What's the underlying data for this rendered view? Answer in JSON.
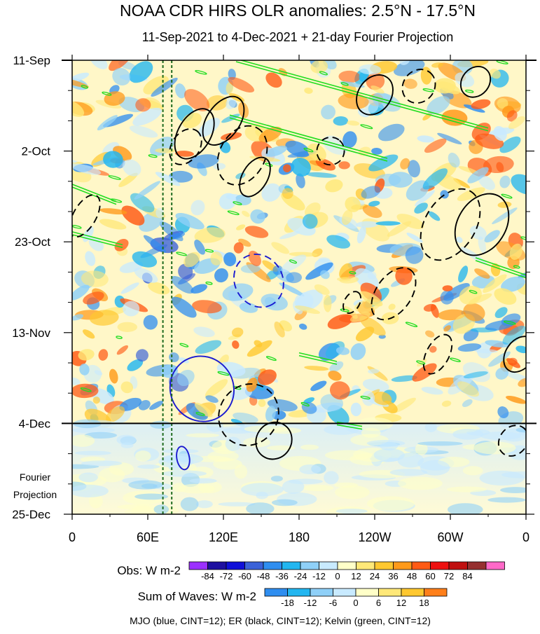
{
  "chart_data": {
    "type": "heatmap",
    "title": "NOAA CDR HIRS OLR anomalies: 2.5°N - 17.5°N",
    "subtitle": "11-Sep-2021 to 4-Dec-2021 + 21-day Fourier Projection",
    "x_ticks": [
      "0",
      "60E",
      "120E",
      "180",
      "120W",
      "60W",
      "0"
    ],
    "x_tick_values": [
      0,
      60,
      120,
      180,
      240,
      300,
      360
    ],
    "y_ticks": [
      "11-Sep",
      "2-Oct",
      "23-Oct",
      "13-Nov",
      "4-Dec",
      "25-Dec"
    ],
    "xlim": [
      0,
      360
    ],
    "ylim": [
      "2021-09-11",
      "2021-12-25"
    ],
    "observation_end": "2021-12-04",
    "projection_label": [
      "Fourier",
      "Projection"
    ],
    "reference_longitudes": [
      72,
      79
    ],
    "obs_colorbar": {
      "label": "Obs: W m-2",
      "ticks": [
        "-84",
        "-72",
        "-60",
        "-48",
        "-36",
        "-24",
        "-12",
        "0",
        "12",
        "24",
        "36",
        "48",
        "60",
        "72",
        "84"
      ],
      "colors": [
        "#9b30ff",
        "#1e10a0",
        "#1010d8",
        "#3b62d8",
        "#2f8ef0",
        "#22b6f0",
        "#8fd0f8",
        "#c8eaff",
        "#ffffc8",
        "#ffe878",
        "#ffc830",
        "#ff9a1a",
        "#ff5a14",
        "#ee1010",
        "#c01010",
        "#963030",
        "#ff69c8"
      ]
    },
    "waves_colorbar": {
      "label": "Sum of Waves: W m-2",
      "ticks": [
        "-18",
        "-12",
        "-6",
        "0",
        "6",
        "12",
        "18"
      ],
      "colors": [
        "#2f8ef0",
        "#22b6f0",
        "#8fd0f8",
        "#c8eaff",
        "#ffffc8",
        "#ffe878",
        "#ffc830",
        "#ff7f1a"
      ]
    },
    "footnote": "MJO (blue, CINT=12); ER (black, CINT=12); Kelvin (green, CINT=12)",
    "contours": [
      {
        "wave": "MJO",
        "color": "#1a1ad0",
        "sign": "negative",
        "lon": 103,
        "date": "2021-11-26",
        "lon_span": 50,
        "day_span": 34,
        "angle": 58
      },
      {
        "wave": "MJO",
        "color": "#1a1ad0",
        "sign": "positive",
        "lon": 148,
        "date": "2021-11-01",
        "lon_span": 38,
        "day_span": 28,
        "angle": 60
      },
      {
        "wave": "MJO",
        "color": "#1a1ad0",
        "sign": "negative",
        "lon": 88,
        "date": "2021-12-12",
        "lon_span": 10,
        "day_span": 12,
        "angle": 80
      },
      {
        "wave": "ER",
        "color": "#000000",
        "sign": "negative",
        "lon": 135,
        "date": "2021-10-03",
        "lon_span": 36,
        "day_span": 32,
        "angle": -62
      },
      {
        "wave": "ER",
        "color": "#000000",
        "sign": "positive",
        "lon": 97,
        "date": "2021-09-28",
        "lon_span": 26,
        "day_span": 28,
        "angle": -60
      },
      {
        "wave": "ER",
        "color": "#000000",
        "sign": "positive",
        "lon": 145,
        "date": "2021-10-08",
        "lon_span": 20,
        "day_span": 22,
        "angle": -60
      },
      {
        "wave": "ER",
        "color": "#000000",
        "sign": "positive",
        "lon": 120,
        "date": "2021-09-25",
        "lon_span": 26,
        "day_span": 28,
        "angle": -55
      },
      {
        "wave": "ER",
        "color": "#000000",
        "sign": "negative",
        "lon": 90,
        "date": "2021-10-01",
        "lon_span": 22,
        "day_span": 20,
        "angle": -55
      },
      {
        "wave": "ER",
        "color": "#000000",
        "sign": "negative",
        "lon": 10,
        "date": "2021-10-17",
        "lon_span": 18,
        "day_span": 24,
        "angle": -60
      },
      {
        "wave": "ER",
        "color": "#000000",
        "sign": "negative",
        "lon": 140,
        "date": "2021-12-02",
        "lon_span": 50,
        "day_span": 30,
        "angle": -55
      },
      {
        "wave": "ER",
        "color": "#000000",
        "sign": "positive",
        "lon": 160,
        "date": "2021-12-08",
        "lon_span": 30,
        "day_span": 18,
        "angle": -55
      },
      {
        "wave": "ER",
        "color": "#000000",
        "sign": "negative",
        "lon": 255,
        "date": "2021-11-04",
        "lon_span": 28,
        "day_span": 30,
        "angle": -55
      },
      {
        "wave": "ER",
        "color": "#000000",
        "sign": "positive",
        "lon": 325,
        "date": "2021-10-19",
        "lon_span": 38,
        "day_span": 34,
        "angle": -58
      },
      {
        "wave": "ER",
        "color": "#000000",
        "sign": "negative",
        "lon": 300,
        "date": "2021-10-19",
        "lon_span": 40,
        "day_span": 40,
        "angle": -58
      },
      {
        "wave": "ER",
        "color": "#000000",
        "sign": "negative",
        "lon": 275,
        "date": "2021-09-17",
        "lon_span": 28,
        "day_span": 16,
        "angle": -50
      },
      {
        "wave": "ER",
        "color": "#000000",
        "sign": "positive",
        "lon": 320,
        "date": "2021-09-16",
        "lon_span": 26,
        "day_span": 14,
        "angle": -50
      },
      {
        "wave": "ER",
        "color": "#000000",
        "sign": "positive",
        "lon": 355,
        "date": "2021-11-18",
        "lon_span": 22,
        "day_span": 20,
        "angle": -55
      },
      {
        "wave": "ER",
        "color": "#000000",
        "sign": "negative",
        "lon": 290,
        "date": "2021-11-18",
        "lon_span": 18,
        "day_span": 22,
        "angle": -62
      },
      {
        "wave": "ER",
        "color": "#000000",
        "sign": "positive",
        "lon": 240,
        "date": "2021-09-19",
        "lon_span": 26,
        "day_span": 22,
        "angle": -55
      },
      {
        "wave": "ER",
        "color": "#000000",
        "sign": "negative",
        "lon": 205,
        "date": "2021-10-02",
        "lon_span": 22,
        "day_span": 14,
        "angle": -50
      },
      {
        "wave": "ER",
        "color": "#000000",
        "sign": "negative",
        "lon": 222,
        "date": "2021-11-06",
        "lon_span": 12,
        "day_span": 12,
        "angle": -60
      },
      {
        "wave": "ER",
        "color": "#000000",
        "sign": "negative",
        "lon": 350,
        "date": "2021-12-08",
        "lon_span": 26,
        "day_span": 14,
        "angle": -50
      }
    ],
    "kelvin_bands": [
      {
        "wave": "Kelvin",
        "color": "#22dd22",
        "lon_start": 130,
        "date_start": "2021-09-11",
        "lon_end": 330,
        "date_end": "2021-09-27"
      },
      {
        "wave": "Kelvin",
        "color": "#22dd22",
        "lon_start": 125,
        "date_start": "2021-09-24",
        "lon_end": 250,
        "date_end": "2021-10-04"
      },
      {
        "wave": "Kelvin",
        "color": "#22dd22",
        "lon_start": 0,
        "date_start": "2021-10-10",
        "lon_end": 35,
        "date_end": "2021-10-14"
      },
      {
        "wave": "Kelvin",
        "color": "#22dd22",
        "lon_start": 0,
        "date_start": "2021-10-21",
        "lon_end": 40,
        "date_end": "2021-10-24"
      },
      {
        "wave": "Kelvin",
        "color": "#22dd22",
        "lon_start": 180,
        "date_start": "2021-11-18",
        "lon_end": 210,
        "date_end": "2021-11-20"
      },
      {
        "wave": "Kelvin",
        "color": "#22dd22",
        "lon_start": 320,
        "date_start": "2021-10-27",
        "lon_end": 360,
        "date_end": "2021-10-31"
      },
      {
        "wave": "Kelvin",
        "color": "#22dd22",
        "lon_start": 210,
        "date_start": "2021-12-04",
        "lon_end": 230,
        "date_end": "2021-12-05"
      }
    ]
  }
}
